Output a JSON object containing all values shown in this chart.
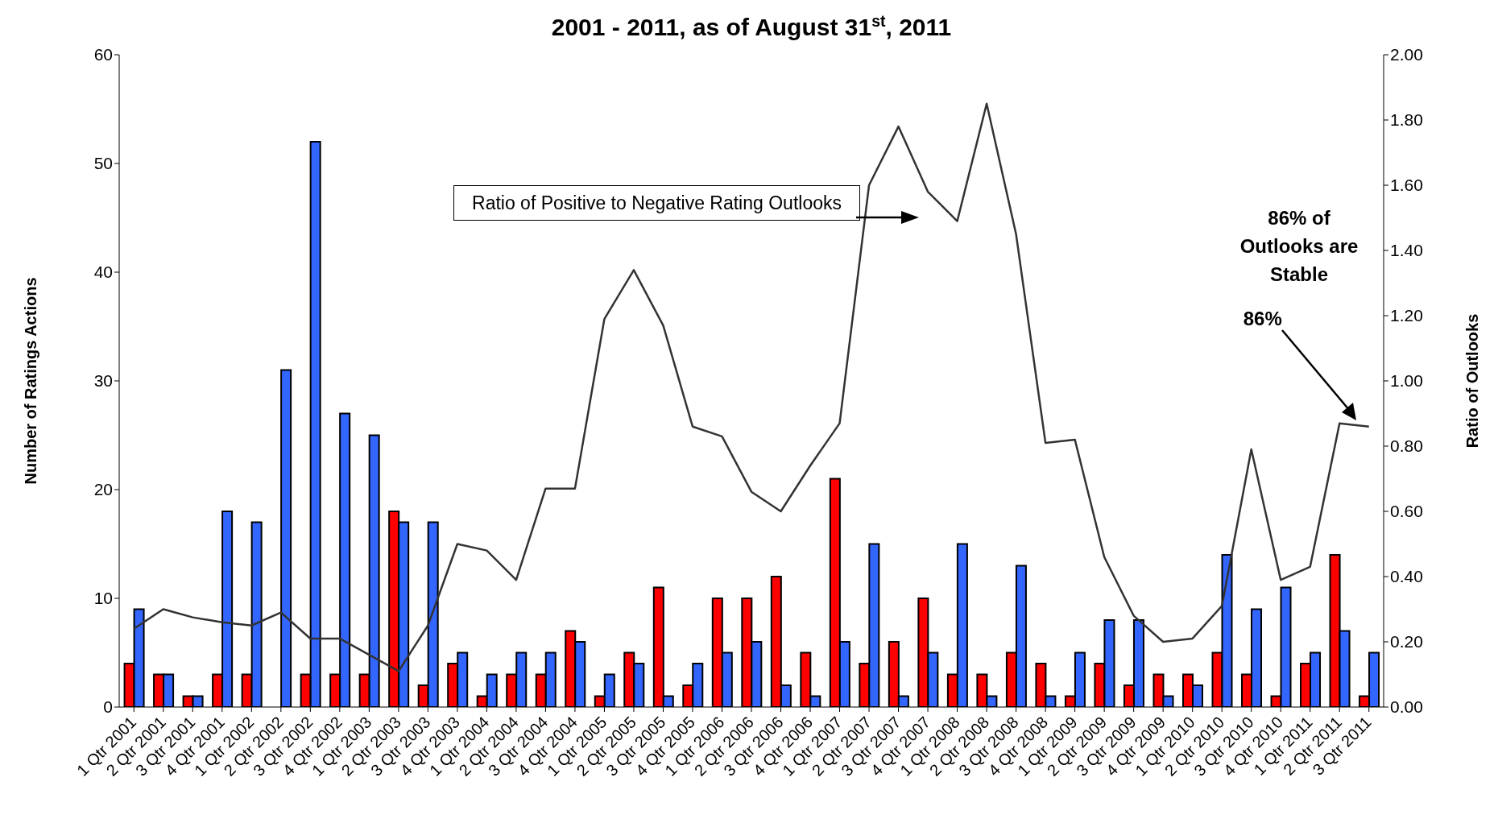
{
  "chart_data": {
    "type": "bar",
    "title": "2001 - 2011, as of August 31$^{st}$, 2011",
    "ylabel": "Number of Ratings Actions",
    "y2label": "Ratio of Outlooks",
    "categories": [
      "1 Qtr 2001",
      "2 Qtr 2001",
      "3 Qtr 2001",
      "4 Qtr 2001",
      "1 Qtr 2002",
      "2 Qtr 2002",
      "3 Qtr 2002",
      "4 Qtr 2002",
      "1 Qtr 2003",
      "2 Qtr 2003",
      "3 Qtr 2003",
      "4 Qtr 2003",
      "1 Qtr 2004",
      "2 Qtr 2004",
      "3 Qtr 2004",
      "4 Qtr 2004",
      "1 Qtr 2005",
      "2 Qtr 2005",
      "3 Qtr 2005",
      "4 Qtr 2005",
      "1 Qtr 2006",
      "2 Qtr 2006",
      "3 Qtr 2006",
      "4 Qtr 2006",
      "1 Qtr 2007",
      "2 Qtr 2007",
      "3 Qtr 2007",
      "4 Qtr 2007",
      "1 Qtr 2008",
      "2 Qtr 2008",
      "3 Qtr 2008",
      "4 Qtr 2008",
      "1 Qtr 2009",
      "2 Qtr 2009",
      "3 Qtr 2009",
      "4 Qtr 2009",
      "1 Qtr 2010",
      "2 Qtr 2010",
      "3 Qtr 2010",
      "4 Qtr 2010",
      "1 Qtr 2011",
      "2 Qtr 2011",
      "3 Qtr 2011"
    ],
    "series": [
      {
        "color": "#ff0000",
        "values": [
          4,
          3,
          1,
          3,
          3,
          0,
          3,
          3,
          3,
          18,
          2,
          4,
          1,
          3,
          3,
          7,
          1,
          5,
          11,
          2,
          10,
          10,
          12,
          5,
          21,
          4,
          6,
          10,
          3,
          3,
          5,
          4,
          1,
          4,
          2,
          3,
          3,
          5,
          3,
          1,
          4,
          14,
          1
        ]
      },
      {
        "color": "#3366ff",
        "values": [
          9,
          3,
          1,
          18,
          17,
          31,
          52,
          27,
          25,
          17,
          17,
          5,
          3,
          5,
          5,
          6,
          3,
          4,
          1,
          4,
          5,
          6,
          2,
          1,
          6,
          15,
          1,
          5,
          15,
          1,
          13,
          1,
          5,
          8,
          8,
          1,
          2,
          14,
          9,
          11,
          5,
          7,
          5
        ]
      },
      {
        "type": "line",
        "axis": "y2",
        "color": "#333333",
        "marker": "none",
        "values": [
          0.24,
          0.3,
          0.275,
          0.26,
          0.25,
          0.29,
          0.21,
          0.21,
          0.16,
          0.11,
          0.25,
          0.5,
          0.48,
          0.39,
          0.67,
          0.67,
          1.19,
          1.34,
          1.17,
          0.86,
          0.83,
          0.66,
          0.6,
          0.74,
          0.87,
          1.6,
          1.78,
          1.58,
          1.49,
          1.85,
          1.45,
          0.81,
          0.82,
          0.46,
          0.28,
          0.2,
          0.21,
          0.31,
          0.79,
          0.39,
          0.43,
          0.87,
          0.86
        ]
      }
    ],
    "ylim": [
      0,
      60
    ],
    "yticks": [
      0,
      10,
      20,
      30,
      40,
      50,
      60
    ],
    "y2lim": [
      0,
      2
    ],
    "y2ticks": [
      {
        "value": 0,
        "label": "0.00"
      },
      {
        "value": 0.2,
        "label": "0.20"
      },
      {
        "value": 0.4,
        "label": "0.40"
      },
      {
        "value": 0.6,
        "label": "0.60"
      },
      {
        "value": 0.8,
        "label": "0.80"
      },
      {
        "value": 1,
        "label": "1.00"
      },
      {
        "value": 1.2,
        "label": "1.20"
      },
      {
        "value": 1.4,
        "label": "1.40"
      },
      {
        "value": 1.6,
        "label": "1.60"
      },
      {
        "value": 1.8,
        "label": "1.80"
      },
      {
        "value": 2,
        "label": "2.00"
      }
    ],
    "annotations": [
      "Ratio of Positive to Negative Rating Outlooks",
      "86% of Outlooks are Stable",
      "86%"
    ]
  }
}
